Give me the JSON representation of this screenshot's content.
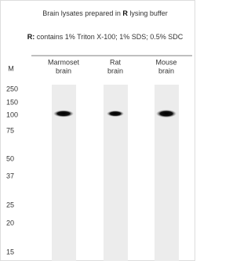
{
  "header": {
    "title_parts": [
      "Brain lysates prepared in ",
      "R",
      " lysing buffer"
    ],
    "note_parts": [
      "R:",
      " contains 1% Triton X-100; 1% SDS; 0.5% SDC"
    ]
  },
  "columns": {
    "marker": "M",
    "lanes": [
      [
        "Marmoset",
        "brain"
      ],
      [
        "Rat",
        "brain"
      ],
      [
        "Mouse",
        "brain"
      ]
    ]
  },
  "markers": [
    "250",
    "150",
    "100",
    "75",
    "50",
    "37",
    "25",
    "20",
    "15"
  ]
}
